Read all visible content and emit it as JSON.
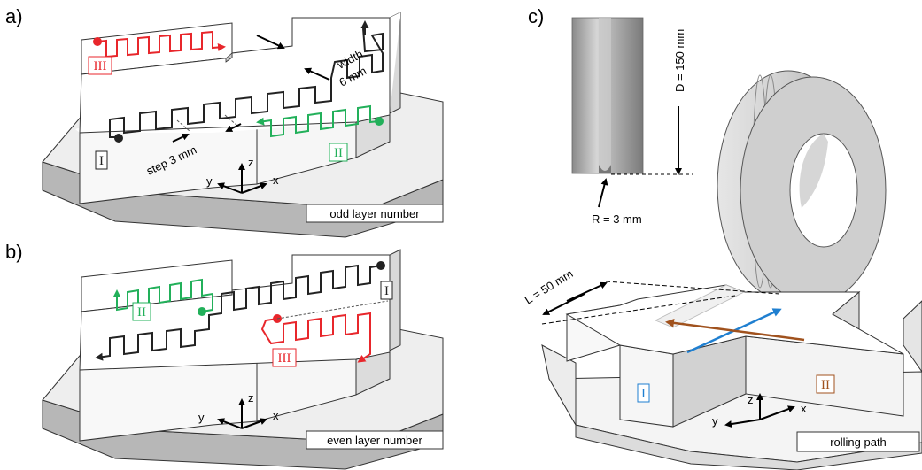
{
  "colors": {
    "red": "#e8262b",
    "green": "#22b05a",
    "black": "#222222",
    "blue": "#1f7fd0",
    "brown": "#a0521e",
    "block_face": "#f2f2f2",
    "block_side": "#d8d8d8",
    "base_side": "#b7b7b7"
  },
  "panel_a": {
    "letter": "a)",
    "region_1": "I",
    "region_2": "II",
    "region_3": "III",
    "width_label_1": "width",
    "width_label_2": "6 mm",
    "step_label": "step 3 mm",
    "axis_x": "x",
    "axis_y": "y",
    "axis_z": "z",
    "caption": "odd layer number"
  },
  "panel_b": {
    "letter": "b)",
    "region_1": "I",
    "region_2": "II",
    "region_3": "III",
    "axis_x": "x",
    "axis_y": "y",
    "axis_z": "z",
    "caption": "even layer number"
  },
  "panel_c": {
    "letter": "c)",
    "diameter_label": "D = 150 mm",
    "radius_label": "R = 3 mm",
    "length_label": "L = 50 mm",
    "region_1": "I",
    "region_2": "II",
    "axis_x": "x",
    "axis_y": "y",
    "axis_z": "z",
    "caption": "rolling path"
  }
}
